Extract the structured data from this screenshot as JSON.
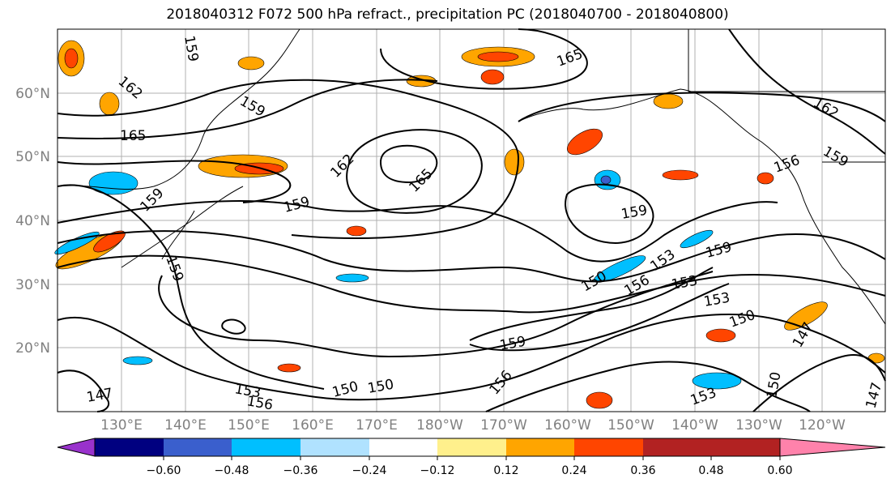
{
  "title": "2018040312 F072 500 hPa refract., precipitation PC (2018040700 - 2018040800)",
  "lat_labels": [
    "60°N",
    "50°N",
    "40°N",
    "30°N",
    "20°N"
  ],
  "lon_labels": [
    "130°E",
    "140°E",
    "150°E",
    "160°E",
    "170°E",
    "180°W",
    "170°W",
    "160°W",
    "150°W",
    "140°W",
    "130°W",
    "120°W"
  ],
  "colorbar": {
    "colors": [
      "#9932cc",
      "#000080",
      "#3a5fcd",
      "#00bfff",
      "#b0e2ff",
      "#ffffff",
      "#fff08c",
      "#ffa500",
      "#ff4500",
      "#b22222",
      "#ff82ab"
    ],
    "tick_labels": [
      "−0.60",
      "−0.48",
      "−0.36",
      "−0.24",
      "−0.12",
      "0.12",
      "0.24",
      "0.36",
      "0.48",
      "0.60"
    ]
  },
  "contour_labels": [
    "162",
    "159",
    "165",
    "159",
    "162",
    "165",
    "159",
    "159",
    "159",
    "165",
    "162",
    "159",
    "156",
    "159",
    "150",
    "156",
    "153",
    "159",
    "153",
    "153",
    "150",
    "159",
    "150",
    "153",
    "156",
    "147",
    "156",
    "150",
    "153",
    "150",
    "147",
    "147"
  ]
}
